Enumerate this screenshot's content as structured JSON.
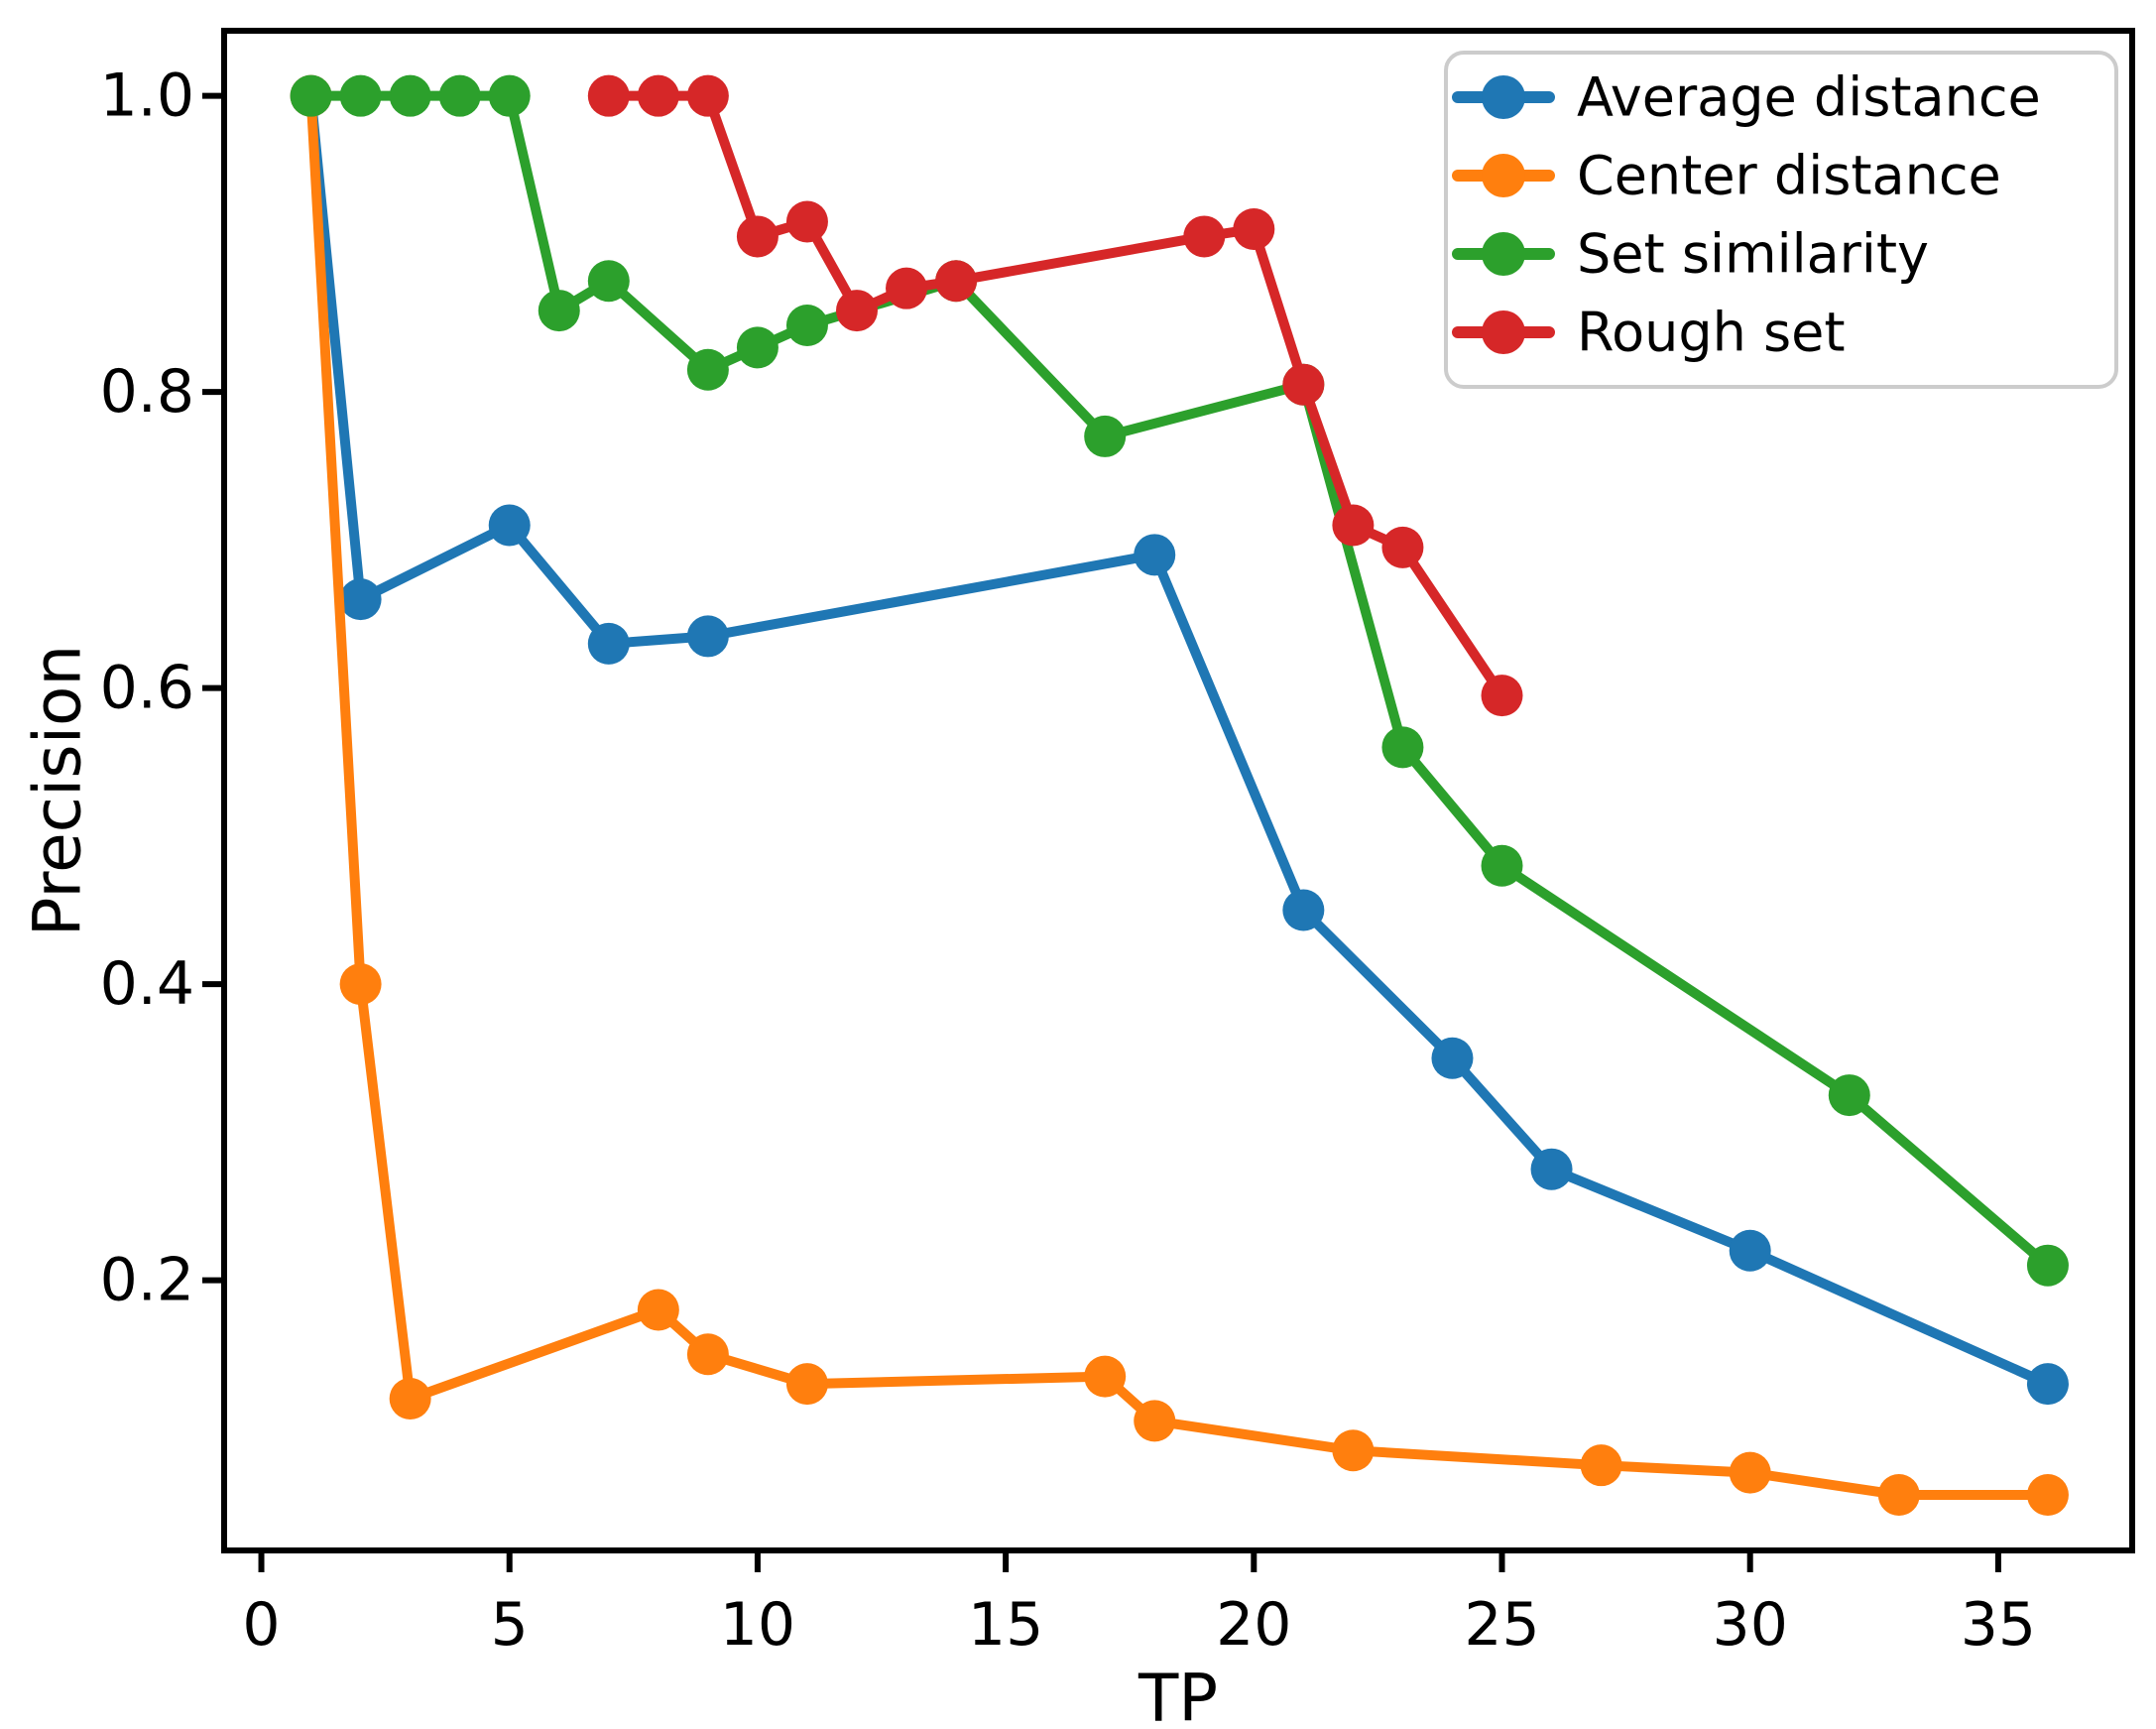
{
  "chart_data": {
    "type": "line",
    "title": "",
    "xlabel": "TP",
    "ylabel": "Precision",
    "x_ticks": [
      "0",
      "5",
      "10",
      "15",
      "20",
      "25",
      "30",
      "35"
    ],
    "y_ticks": [
      "0.2",
      "0.4",
      "0.6",
      "0.8",
      "1.0"
    ],
    "xlim": [
      -0.75,
      37.7
    ],
    "ylim": [
      0.0175,
      1.044
    ],
    "grid": false,
    "legend_position": "upper right",
    "marker": "circle",
    "axis_color": "#000000",
    "background_color": "#ffffff",
    "legend_border_color": "#cccccc",
    "series": [
      {
        "name": "Average distance",
        "color": "#1f77b4",
        "x": [
          1,
          2,
          5,
          7,
          9,
          18,
          21,
          24,
          26,
          30,
          36
        ],
        "y": [
          1.0,
          0.66,
          0.71,
          0.63,
          0.635,
          0.69,
          0.45,
          0.35,
          0.275,
          0.22,
          0.13
        ]
      },
      {
        "name": "Center distance",
        "color": "#ff7f0e",
        "x": [
          1,
          2,
          3,
          8,
          9,
          11,
          17,
          18,
          22,
          27,
          30,
          33,
          36
        ],
        "y": [
          1.0,
          0.4,
          0.12,
          0.18,
          0.15,
          0.13,
          0.135,
          0.105,
          0.085,
          0.075,
          0.07,
          0.055,
          0.055
        ]
      },
      {
        "name": "Set similarity",
        "color": "#2ca02c",
        "x": [
          1,
          2,
          3,
          4,
          5,
          6,
          7,
          9,
          10,
          11,
          14,
          17,
          21,
          23,
          25,
          32,
          36
        ],
        "y": [
          1.0,
          1.0,
          1.0,
          1.0,
          1.0,
          0.855,
          0.875,
          0.815,
          0.83,
          0.845,
          0.875,
          0.77,
          0.805,
          0.56,
          0.48,
          0.325,
          0.21
        ]
      },
      {
        "name": "Rough set",
        "color": "#d62728",
        "x": [
          7,
          8,
          9,
          10,
          11,
          12,
          13,
          14,
          19,
          20,
          21,
          22,
          23,
          25
        ],
        "y": [
          1.0,
          1.0,
          1.0,
          0.905,
          0.915,
          0.855,
          0.87,
          0.875,
          0.905,
          0.91,
          0.805,
          0.71,
          0.695,
          0.595
        ]
      }
    ]
  }
}
